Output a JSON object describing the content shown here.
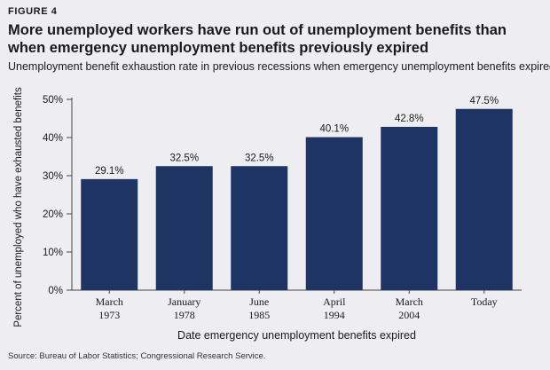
{
  "figure_label": "FIGURE 4",
  "title": "More unemployed workers have run out of unemployment benefits than when emergency unemployment benefits previously expired",
  "subtitle": "Unemployment benefit exhaustion rate in previous recessions when emergency unemployment benefits expired",
  "source": "Source: Bureau of Labor Statistics; Congressional Research Service.",
  "colors": {
    "bar": "#1e3462",
    "axis": "#444444",
    "background": "#eeeef2"
  },
  "chart_data": {
    "type": "bar",
    "categories": [
      [
        "March",
        "1973"
      ],
      [
        "January",
        "1978"
      ],
      [
        "June",
        "1985"
      ],
      [
        "April",
        "1994"
      ],
      [
        "March",
        "2004"
      ],
      [
        "Today"
      ]
    ],
    "values": [
      29.1,
      32.5,
      32.5,
      40.1,
      42.8,
      47.5
    ],
    "value_labels": [
      "29.1%",
      "32.5%",
      "32.5%",
      "40.1%",
      "42.8%",
      "47.5%"
    ],
    "xlabel": "Date emergency unemployment benefits expired",
    "ylabel": "Percent of unemployed who have exhausted benefits",
    "ylim": [
      0,
      50
    ],
    "yticks": [
      0,
      10,
      20,
      30,
      40,
      50
    ],
    "ytick_labels": [
      "0%",
      "10%",
      "20%",
      "30%",
      "40%",
      "50%"
    ],
    "grid": false,
    "legend": "none"
  }
}
